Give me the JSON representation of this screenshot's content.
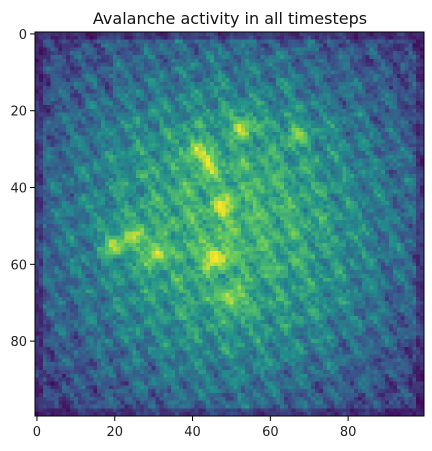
{
  "chart_data": {
    "type": "heatmap",
    "title": "Avalanche activity in all timesteps",
    "xlabel": "",
    "ylabel": "",
    "colormap": "viridis",
    "grid_size": [
      100,
      100
    ],
    "xlim": [
      0,
      99
    ],
    "ylim": [
      99,
      0
    ],
    "x_ticks": [
      0,
      20,
      40,
      60,
      80
    ],
    "y_ticks": [
      0,
      20,
      40,
      60,
      80
    ],
    "grid": false,
    "legend": "none",
    "colorbar": false,
    "hotspots": [
      {
        "x": 46,
        "y": 58,
        "intensity": 1.0
      },
      {
        "x": 20,
        "y": 55,
        "intensity": 0.9
      },
      {
        "x": 30,
        "y": 57,
        "intensity": 0.85
      },
      {
        "x": 50,
        "y": 69,
        "intensity": 0.8
      },
      {
        "x": 53,
        "y": 24,
        "intensity": 0.8
      },
      {
        "x": 44,
        "y": 34,
        "intensity": 0.75
      },
      {
        "x": 48,
        "y": 45,
        "intensity": 0.7
      },
      {
        "x": 67,
        "y": 26,
        "intensity": 0.65
      },
      {
        "x": 25,
        "y": 52,
        "intensity": 0.7
      },
      {
        "x": 41,
        "y": 30,
        "intensity": 0.65
      }
    ],
    "colors": {
      "low": "#440154",
      "mid_low": "#3b528b",
      "mid": "#21918c",
      "mid_high": "#5ec962",
      "high": "#fde725"
    }
  }
}
